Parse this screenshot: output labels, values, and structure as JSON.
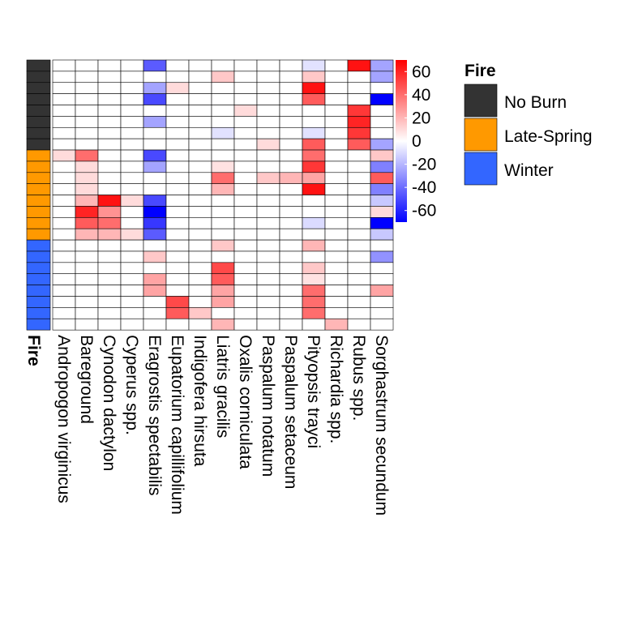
{
  "chart_data": {
    "type": "heatmap",
    "columns": [
      "Andropogon virginicus",
      "Bareground",
      "Cynodon dactylon",
      "Cyperus spp.",
      "Eragrostis spectabilis",
      "Eupatorium capillifolium",
      "Indigofera hirsuta",
      "Liatris gracilis",
      "Oxalis corniculata",
      "Paspalum notatum",
      "Paspalum setaceum",
      "Pityopsis trayci",
      "Richardia spp.",
      "Rubus spp.",
      "Sorghastrum secundum"
    ],
    "row_groups": [
      "No Burn",
      "No Burn",
      "No Burn",
      "No Burn",
      "No Burn",
      "No Burn",
      "No Burn",
      "No Burn",
      "Late-Spring",
      "Late-Spring",
      "Late-Spring",
      "Late-Spring",
      "Late-Spring",
      "Late-Spring",
      "Late-Spring",
      "Late-Spring",
      "Winter",
      "Winter",
      "Winter",
      "Winter",
      "Winter",
      "Winter",
      "Winter",
      "Winter"
    ],
    "values": [
      [
        0,
        0,
        0,
        0,
        -45,
        0,
        0,
        0,
        0,
        0,
        0,
        -8,
        0,
        65,
        -25
      ],
      [
        0,
        0,
        0,
        0,
        0,
        0,
        0,
        15,
        0,
        0,
        0,
        15,
        0,
        0,
        -25
      ],
      [
        0,
        0,
        0,
        0,
        -25,
        10,
        0,
        0,
        0,
        0,
        0,
        65,
        0,
        0,
        0
      ],
      [
        0,
        0,
        0,
        0,
        -50,
        0,
        0,
        0,
        0,
        0,
        0,
        45,
        0,
        0,
        -70
      ],
      [
        0,
        0,
        0,
        0,
        0,
        0,
        0,
        0,
        10,
        0,
        0,
        0,
        0,
        55,
        0
      ],
      [
        0,
        0,
        0,
        0,
        -25,
        0,
        0,
        0,
        0,
        0,
        0,
        0,
        0,
        60,
        0
      ],
      [
        0,
        0,
        0,
        0,
        0,
        0,
        0,
        -8,
        0,
        0,
        0,
        -8,
        0,
        55,
        0
      ],
      [
        0,
        0,
        0,
        0,
        0,
        0,
        0,
        0,
        0,
        10,
        0,
        45,
        0,
        45,
        -25
      ],
      [
        10,
        40,
        0,
        0,
        -50,
        0,
        0,
        0,
        0,
        0,
        0,
        40,
        0,
        0,
        15
      ],
      [
        0,
        10,
        0,
        0,
        -25,
        0,
        0,
        8,
        0,
        0,
        0,
        55,
        0,
        0,
        -35
      ],
      [
        0,
        10,
        0,
        0,
        0,
        0,
        0,
        40,
        0,
        15,
        20,
        25,
        0,
        0,
        45
      ],
      [
        0,
        10,
        0,
        0,
        0,
        0,
        0,
        20,
        0,
        0,
        0,
        65,
        0,
        0,
        -35
      ],
      [
        0,
        20,
        65,
        10,
        -50,
        0,
        0,
        0,
        0,
        0,
        0,
        0,
        0,
        0,
        -15
      ],
      [
        0,
        60,
        30,
        0,
        -70,
        0,
        0,
        0,
        0,
        0,
        0,
        0,
        0,
        0,
        10
      ],
      [
        0,
        45,
        40,
        0,
        -55,
        0,
        0,
        0,
        0,
        0,
        0,
        -10,
        0,
        0,
        -70
      ],
      [
        0,
        20,
        20,
        10,
        -45,
        0,
        0,
        0,
        0,
        0,
        0,
        0,
        0,
        0,
        -15
      ],
      [
        0,
        0,
        0,
        0,
        0,
        0,
        0,
        15,
        0,
        0,
        0,
        20,
        0,
        0,
        0
      ],
      [
        0,
        0,
        0,
        0,
        15,
        0,
        0,
        0,
        0,
        0,
        0,
        0,
        0,
        0,
        -30
      ],
      [
        0,
        0,
        0,
        0,
        0,
        0,
        0,
        50,
        0,
        0,
        0,
        15,
        0,
        0,
        0
      ],
      [
        0,
        0,
        0,
        0,
        25,
        0,
        0,
        45,
        0,
        0,
        0,
        8,
        0,
        0,
        0
      ],
      [
        0,
        0,
        0,
        0,
        25,
        0,
        0,
        25,
        0,
        0,
        0,
        40,
        0,
        0,
        25
      ],
      [
        0,
        0,
        0,
        0,
        0,
        50,
        0,
        25,
        0,
        0,
        0,
        40,
        0,
        0,
        0
      ],
      [
        0,
        0,
        0,
        0,
        0,
        45,
        15,
        0,
        0,
        0,
        0,
        40,
        0,
        0,
        0
      ],
      [
        0,
        0,
        0,
        0,
        0,
        0,
        0,
        20,
        0,
        0,
        0,
        0,
        20,
        0,
        0
      ]
    ],
    "colorbar": {
      "range": [
        -70,
        70
      ],
      "ticks": [
        -60,
        -40,
        -20,
        0,
        20,
        40,
        60
      ],
      "low": "#0000FF",
      "mid": "#FFFFFF",
      "high": "#FF0000"
    },
    "annotation": {
      "name": "Fire",
      "levels": [
        "No Burn",
        "Late-Spring",
        "Winter"
      ],
      "colors": [
        "#333333",
        "#FF9900",
        "#3366FF"
      ]
    }
  }
}
